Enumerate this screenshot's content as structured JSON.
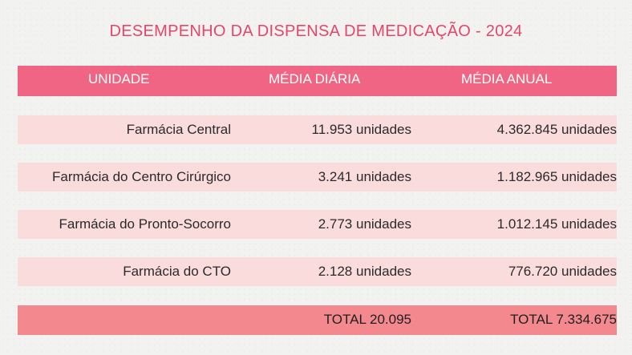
{
  "title": "DESEMPENHO DA DISPENSA DE MEDICAÇÃO - 2024",
  "colors": {
    "title": "#e8456a",
    "header_bg": "#f06583",
    "row_bg": "#fbdcdc",
    "total_bg": "#f3898f"
  },
  "table": {
    "headers": [
      "UNIDADE",
      "MÉDIA DIÁRIA",
      "MÉDIA ANUAL"
    ],
    "rows": [
      {
        "unidade": "Farmácia Central",
        "media_diaria": "11.953 unidades",
        "media_anual": "4.362.845 unidades"
      },
      {
        "unidade": "Farmácia do Centro Cirúrgico",
        "media_diaria": "3.241 unidades",
        "media_anual": "1.182.965 unidades"
      },
      {
        "unidade": "Farmácia do Pronto-Socorro",
        "media_diaria": "2.773 unidades",
        "media_anual": "1.012.145 unidades"
      },
      {
        "unidade": "Farmácia do CTO",
        "media_diaria": "2.128 unidades",
        "media_anual": "776.720 unidades"
      }
    ],
    "total": {
      "unidade": "",
      "media_diaria": "TOTAL 20.095",
      "media_anual": "TOTAL 7.334.675"
    }
  }
}
